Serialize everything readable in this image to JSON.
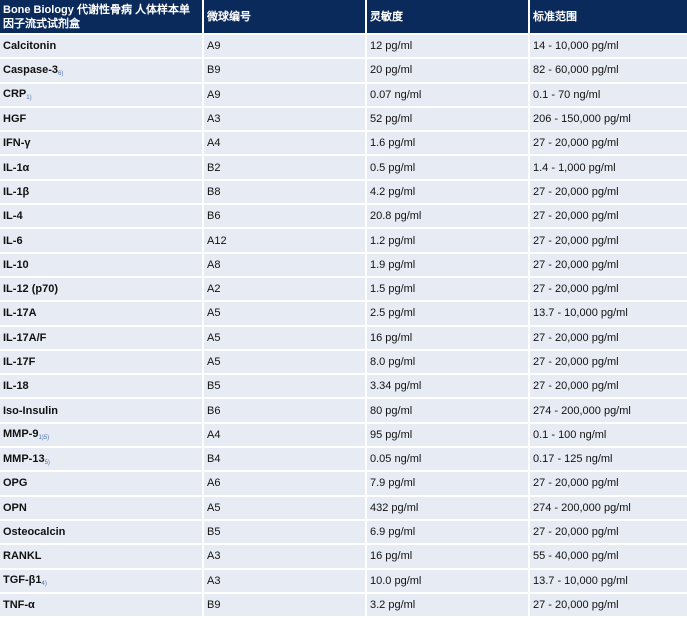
{
  "table": {
    "headers": [
      "Bone Biology 代谢性骨病 人体样本单因子流式试剂盒",
      "微球编号",
      "灵敏度",
      "标准范围"
    ],
    "rows": [
      {
        "name": "Calcitonin",
        "note": "",
        "bead": "A9",
        "sensitivity": "12 pg/ml",
        "range": "14 - 10,000 pg/ml"
      },
      {
        "name": "Caspase-3",
        "note": "6)",
        "bead": "B9",
        "sensitivity": "20 pg/ml",
        "range": "82 - 60,000 pg/ml"
      },
      {
        "name": "CRP",
        "note": "1)",
        "bead": "A9",
        "sensitivity": "0.07 ng/ml",
        "range": "0.1 - 70 ng/ml"
      },
      {
        "name": "HGF",
        "note": "",
        "bead": "A3",
        "sensitivity": "52 pg/ml",
        "range": "206 - 150,000 pg/ml"
      },
      {
        "name": "IFN-γ",
        "note": "",
        "bead": "A4",
        "sensitivity": "1.6 pg/ml",
        "range": "27 - 20,000 pg/ml"
      },
      {
        "name": "IL-1α",
        "note": "",
        "bead": "B2",
        "sensitivity": "0.5 pg/ml",
        "range": "1.4 - 1,000 pg/ml"
      },
      {
        "name": "IL-1β",
        "note": "",
        "bead": "B8",
        "sensitivity": "4.2 pg/ml",
        "range": "27 - 20,000 pg/ml"
      },
      {
        "name": "IL-4",
        "note": "",
        "bead": "B6",
        "sensitivity": "20.8 pg/ml",
        "range": "27 - 20,000 pg/ml"
      },
      {
        "name": "IL-6",
        "note": "",
        "bead": "A12",
        "sensitivity": "1.2 pg/ml",
        "range": "27 - 20,000 pg/ml"
      },
      {
        "name": "IL-10",
        "note": "",
        "bead": "A8",
        "sensitivity": "1.9 pg/ml",
        "range": "27 - 20,000 pg/ml"
      },
      {
        "name": "IL-12 (p70)",
        "note": "",
        "bead": "A2",
        "sensitivity": "1.5 pg/ml",
        "range": "27 - 20,000 pg/ml"
      },
      {
        "name": "IL-17A",
        "note": "",
        "bead": "A5",
        "sensitivity": "2.5 pg/ml",
        "range": "13.7 - 10,000 pg/ml"
      },
      {
        "name": "IL-17A/F",
        "note": "",
        "bead": "A5",
        "sensitivity": "16 pg/ml",
        "range": "27 - 20,000 pg/ml"
      },
      {
        "name": "IL-17F",
        "note": "",
        "bead": "A5",
        "sensitivity": "8.0 pg/ml",
        "range": "27 - 20,000 pg/ml"
      },
      {
        "name": "IL-18",
        "note": "",
        "bead": "B5",
        "sensitivity": "3.34 pg/ml",
        "range": "27 - 20,000 pg/ml"
      },
      {
        "name": "Iso-Insulin",
        "note": "",
        "bead": "B6",
        "sensitivity": "80 pg/ml",
        "range": "274 - 200,000 pg/ml"
      },
      {
        "name": "MMP-9",
        "note": "1)5)",
        "bead": "A4",
        "sensitivity": "95 pg/ml",
        "range": "0.1 - 100 ng/ml"
      },
      {
        "name": "MMP-13",
        "note": "5)",
        "bead": "B4",
        "sensitivity": "0.05 ng/ml",
        "range": "0.17 - 125 ng/ml"
      },
      {
        "name": "OPG",
        "note": "",
        "bead": "A6",
        "sensitivity": "7.9 pg/ml",
        "range": "27 - 20,000 pg/ml"
      },
      {
        "name": "OPN",
        "note": "",
        "bead": "A5",
        "sensitivity": "432 pg/ml",
        "range": "274 - 200,000 pg/ml"
      },
      {
        "name": "Osteocalcin",
        "note": "",
        "bead": "B5",
        "sensitivity": "6.9 pg/ml",
        "range": "27 - 20,000 pg/ml"
      },
      {
        "name": "RANKL",
        "note": "",
        "bead": "A3",
        "sensitivity": "16 pg/ml",
        "range": "55 - 40,000 pg/ml"
      },
      {
        "name": "TGF-β1",
        "note": "4)",
        "bead": "A3",
        "sensitivity": "10.0 pg/ml",
        "range": "13.7 - 10,000 pg/ml"
      },
      {
        "name": "TNF-α",
        "note": "",
        "bead": "B9",
        "sensitivity": "3.2 pg/ml",
        "range": "27 - 20,000 pg/ml"
      }
    ]
  }
}
